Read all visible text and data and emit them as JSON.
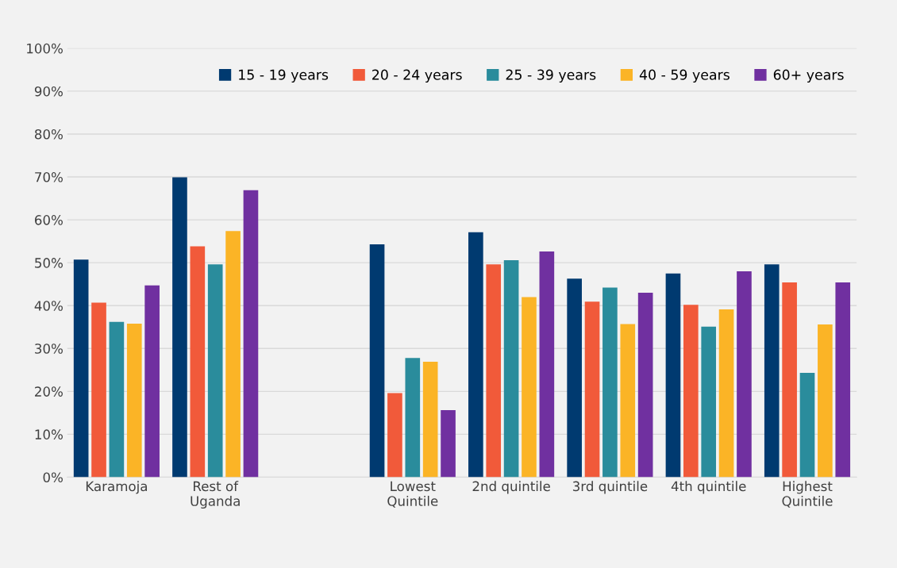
{
  "chart_data": {
    "type": "bar",
    "categories": [
      "Karamoja",
      "Rest of\nUganda",
      null,
      "Lowest\nQuintile",
      "2nd quintile",
      "3rd quintile",
      "4th quintile",
      "Highest\nQuintile"
    ],
    "series": [
      {
        "name": "15 - 19 years",
        "color": "#003a70",
        "values": [
          50.7,
          69.9,
          null,
          54.3,
          57.1,
          46.3,
          47.5,
          49.6
        ]
      },
      {
        "name": "20 - 24 years",
        "color": "#f15a3a",
        "values": [
          40.7,
          53.8,
          null,
          19.6,
          49.6,
          40.9,
          40.2,
          45.4
        ]
      },
      {
        "name": "25 - 39 years",
        "color": "#2a8c9c",
        "values": [
          36.2,
          49.6,
          null,
          27.8,
          50.6,
          44.2,
          35.1,
          24.3
        ]
      },
      {
        "name": "40 - 59 years",
        "color": "#fbb426",
        "values": [
          35.8,
          57.4,
          null,
          26.9,
          42.0,
          35.7,
          39.1,
          35.6
        ]
      },
      {
        "name": "60+ years",
        "color": "#7030a0",
        "values": [
          44.7,
          66.9,
          null,
          15.6,
          52.6,
          43.0,
          48.0,
          45.4
        ]
      }
    ],
    "ylim": [
      0,
      100
    ],
    "yticks": [
      {
        "value": 0,
        "label": "0%"
      },
      {
        "value": 10,
        "label": "10%"
      },
      {
        "value": 20,
        "label": "20%"
      },
      {
        "value": 30,
        "label": "30%"
      },
      {
        "value": 40,
        "label": "40%"
      },
      {
        "value": 50,
        "label": "50%"
      },
      {
        "value": 60,
        "label": "60%"
      },
      {
        "value": 70,
        "label": "70%"
      },
      {
        "value": 80,
        "label": "80%"
      },
      {
        "value": 90,
        "label": "90%"
      },
      {
        "value": 100,
        "label": "100%"
      }
    ],
    "grid": "y",
    "legend": "top right"
  }
}
